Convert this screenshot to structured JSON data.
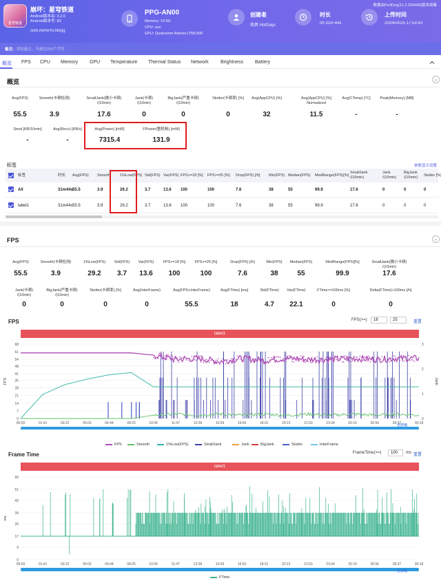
{
  "app": {
    "icon_label": "星穹铁道",
    "title": "崩坏：星穹铁道",
    "version": "Android版本名: 3.2.0",
    "build": "Android版本号: 83",
    "package": "com.miHoYo.hkrpg"
  },
  "device": {
    "name": "PPG-AN00",
    "memory": "Memory: 14.9G",
    "cpu": "CPU: sun",
    "gpu": "GPU: Qualcomm Adreno (TM) 830"
  },
  "creator": {
    "label": "创建者",
    "value": "热男 HotGays"
  },
  "duration": {
    "label": "时长",
    "value": "0h 31m 44s"
  },
  "upload": {
    "label": "上传时间",
    "value": "20/04/2025 17:53:43"
  },
  "data_note": "数据由PerfDog(11.2.250408)版本收集",
  "remark": {
    "label": "备注:",
    "placeholder": "添加备注，不超过200个字符"
  },
  "nav": [
    "概览",
    "FPS",
    "CPU",
    "Memory",
    "GPU",
    "Temperature",
    "Thermal Status",
    "Network",
    "Brightness",
    "Battery"
  ],
  "overview": {
    "title": "概览",
    "metrics_row1": [
      {
        "label": "Avg(FPS)",
        "value": "55.5"
      },
      {
        "label": "Smooth(卡顿检测)",
        "value": "3.9"
      },
      {
        "label": "SmallJank(微小卡顿)\n/(10min)",
        "value": "17.6"
      },
      {
        "label": "Jank(卡顿)\n/(10min)",
        "value": "0"
      },
      {
        "label": "BigJank(严重卡顿)\n/(10min)",
        "value": "0"
      },
      {
        "label": "Stutter(卡顿率) [%]",
        "value": "0"
      },
      {
        "label": "Avg(AppCPU) [%]",
        "value": "32"
      },
      {
        "label": "Avg(AppCPU) [%]\nNormalized",
        "value": "11.5"
      },
      {
        "label": "Avg(CTemp) [°C]",
        "value": "-"
      },
      {
        "label": "Peak(Memory) [MB]",
        "value": "-"
      }
    ],
    "metrics_row2": [
      {
        "label": "Send [KB/10min]",
        "value": "-"
      },
      {
        "label": "Avg(Recv) [KB/s]",
        "value": "-"
      },
      {
        "label": "Avg(Power) [mW]",
        "value": "7315.4"
      },
      {
        "label": "FPower(整机耗) [mW]",
        "value": "131.9"
      }
    ]
  },
  "table": {
    "title": "标签",
    "link": "参数显示设置",
    "headers": [
      "标签",
      "时长",
      "Avg(FPS)",
      "Smooth",
      "1%Low(FPS)",
      "Std(FPS)",
      "Var(FPS)",
      "FPS>=18 [%]",
      "FPS>=25 [%]",
      "Drop(FPS) [/h]",
      "Min(FPS)",
      "Median(FPS)",
      "MedRange(FPS)[%]",
      "SmallJank\n/(10min)",
      "Jank\n/(10min)",
      "BigJank\n/(10min)",
      "Stutter [%]"
    ],
    "rows": [
      [
        "All",
        "31m44s",
        "55.5",
        "3.9",
        "29.2",
        "3.7",
        "13.6",
        "100",
        "100",
        "7.6",
        "38",
        "55",
        "99.9",
        "17.6",
        "0",
        "0",
        "0"
      ],
      [
        "label1",
        "31m44s",
        "55.5",
        "3.9",
        "29.2",
        "3.7",
        "13.6",
        "100",
        "100",
        "7.6",
        "38",
        "55",
        "99.9",
        "17.6",
        "0",
        "0",
        "0"
      ]
    ]
  },
  "fps_section": {
    "title": "FPS",
    "metrics_row1": [
      {
        "label": "Avg(FPS)",
        "value": "55.5"
      },
      {
        "label": "Smooth(卡顿检测)",
        "value": "3.9"
      },
      {
        "label": "1%Low(FPS)",
        "value": "29.2"
      },
      {
        "label": "Std(FPS)",
        "value": "3.7"
      },
      {
        "label": "Var(FPS)",
        "value": "13.6"
      },
      {
        "label": "FPS>=18 [%]",
        "value": "100"
      },
      {
        "label": "FPS>=25 [%]",
        "value": "100"
      },
      {
        "label": "Drop(FPS) [/h]",
        "value": "7.6"
      },
      {
        "label": "Min(FPS)",
        "value": "38"
      },
      {
        "label": "Median(FPS)",
        "value": "55"
      },
      {
        "label": "MedRange(FPS)[%]",
        "value": "99.9"
      },
      {
        "label": "SmallJank(微小卡顿)\n/(10min)",
        "value": "17.6"
      }
    ],
    "metrics_row2": [
      {
        "label": "Jank(卡顿)\n/(10min)",
        "value": "0"
      },
      {
        "label": "BigJank(严重卡顿)\n/(10min)",
        "value": "0"
      },
      {
        "label": "Stutter(卡顿率) [%]",
        "value": "0"
      },
      {
        "label": "Avg(InterFrame)",
        "value": "0"
      },
      {
        "label": "Avg(FPS+InterFrame)",
        "value": "55.5"
      },
      {
        "label": "Avg(FTime) [ms]",
        "value": "18"
      },
      {
        "label": "Std(FTime)",
        "value": "4.7"
      },
      {
        "label": "Var(FTime)",
        "value": "22.1"
      },
      {
        "label": "FTime>=100ms [%]",
        "value": "0"
      },
      {
        "label": "Delta(FTime)>100ms [/h]",
        "value": "0"
      }
    ]
  },
  "fps_chart": {
    "title": "FPS",
    "label_band": "label1",
    "threshold_label": "FPS(>=)",
    "threshold_1": "18",
    "threshold_2": "25",
    "reset": "重置",
    "zoom_all": "全部缩",
    "left_axis_label": "FPS",
    "right_axis_label": "Jank",
    "legend": [
      {
        "name": "FPS",
        "color": "#b04cb6"
      },
      {
        "name": "Smooth",
        "color": "#5fbf6a"
      },
      {
        "name": "1%Low(FPS)",
        "color": "#2bb3a2"
      },
      {
        "name": "SmallJank",
        "color": "#3b3fa8"
      },
      {
        "name": "Jank",
        "color": "#e9a23b"
      },
      {
        "name": "BigJank",
        "color": "#d93b3b"
      },
      {
        "name": "Stutter",
        "color": "#4a5fc9"
      },
      {
        "name": "InterFrame",
        "color": "#6fc7e8"
      }
    ]
  },
  "ft_chart": {
    "title": "Frame Time",
    "label_band": "label1",
    "threshold_label": "FrameTime(>=)",
    "threshold": "100",
    "unit": "ms",
    "reset": "重置",
    "zoom_all": "全部缩",
    "axis_label": "ms",
    "legend": "FTime"
  },
  "chart_data": [
    {
      "type": "line",
      "title": "FPS",
      "ylabel": "FPS",
      "y2label": "Jank",
      "x": [
        "00:00",
        "01:41",
        "03:22",
        "05:03",
        "06:44",
        "08:25",
        "10:06",
        "11:47",
        "13:28",
        "15:09",
        "16:50",
        "18:31",
        "20:12",
        "21:53",
        "23:34",
        "25:15",
        "26:56",
        "28:37",
        "30:18"
      ],
      "yticks": [
        0,
        7,
        14,
        21,
        28,
        35,
        41,
        48,
        54,
        61,
        68
      ],
      "y2ticks": [
        0,
        1,
        2,
        3
      ],
      "ylim": [
        0,
        68
      ],
      "series": [
        {
          "name": "FPS",
          "values": [
            60,
            60,
            60,
            60,
            60,
            60,
            58,
            54,
            55,
            52,
            55,
            53,
            55,
            54,
            54,
            55,
            54,
            55,
            55
          ]
        },
        {
          "name": "1%Low(FPS)",
          "values": [
            0,
            22,
            31,
            36,
            40,
            42,
            29,
            29,
            29,
            29,
            29,
            29,
            29,
            29,
            29,
            29,
            29,
            29,
            29
          ]
        },
        {
          "name": "Smooth",
          "values": [
            0,
            0,
            0,
            0,
            0,
            0,
            3,
            4,
            3,
            4,
            3,
            4,
            3,
            4,
            3,
            4,
            3,
            4,
            3
          ]
        }
      ]
    },
    {
      "type": "line",
      "title": "Frame Time",
      "ylabel": "ms",
      "x": [
        "00:00",
        "01:41",
        "03:22",
        "05:03",
        "06:44",
        "08:25",
        "10:06",
        "11:47",
        "13:28",
        "15:09",
        "16:50",
        "18:31",
        "20:12",
        "21:53",
        "23:34",
        "25:15",
        "26:56",
        "28:37",
        "30:18"
      ],
      "yticks": [
        0,
        9,
        17,
        26,
        34,
        43,
        51,
        60
      ],
      "ylim": [
        0,
        60
      ],
      "series": [
        {
          "name": "FTime",
          "values": [
            17,
            17,
            17,
            17,
            17,
            17,
            17,
            17,
            17,
            17,
            17,
            17,
            17,
            17,
            17,
            17,
            17,
            17,
            17
          ]
        }
      ]
    }
  ]
}
